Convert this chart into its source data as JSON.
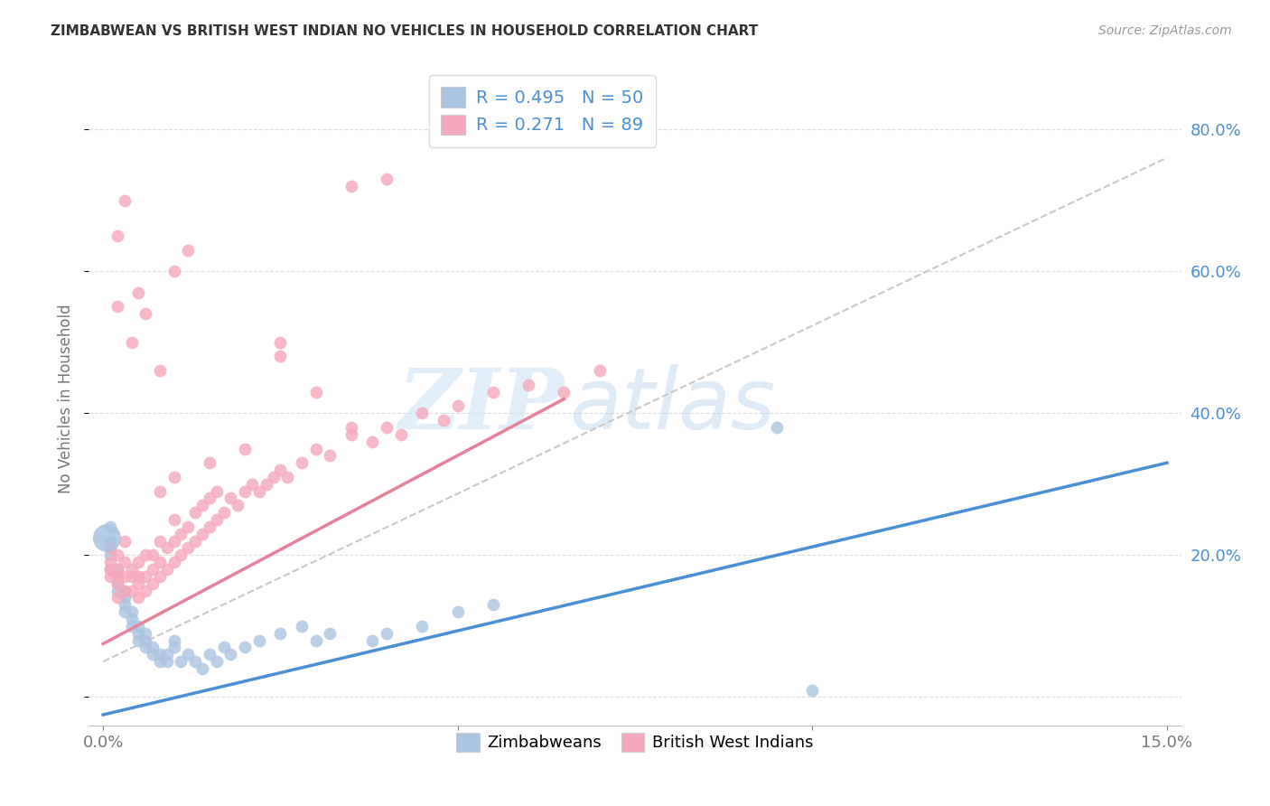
{
  "title": "ZIMBABWEAN VS BRITISH WEST INDIAN NO VEHICLES IN HOUSEHOLD CORRELATION CHART",
  "source": "Source: ZipAtlas.com",
  "ylabel": "No Vehicles in Household",
  "xlim": [
    -0.002,
    0.152
  ],
  "ylim": [
    -0.04,
    0.88
  ],
  "color_blue": "#aac4e2",
  "color_pink": "#f5a8bb",
  "color_blue_text": "#4a8fd4",
  "trendline_blue": "#4a8fd4",
  "trendline_pink": "#e8809a",
  "trendline_dashed": "#c8c8c8",
  "watermark_zip": "ZIP",
  "watermark_atlas": "atlas",
  "background_color": "#ffffff",
  "grid_color": "#dddddd",
  "legend_r1": "R = 0.495",
  "legend_n1": "N = 50",
  "legend_r2": "R = 0.271",
  "legend_n2": "N = 89",
  "zim_x": [
    0.001,
    0.001,
    0.001,
    0.001,
    0.002,
    0.002,
    0.002,
    0.002,
    0.003,
    0.003,
    0.003,
    0.003,
    0.004,
    0.004,
    0.004,
    0.005,
    0.005,
    0.005,
    0.006,
    0.006,
    0.006,
    0.007,
    0.007,
    0.008,
    0.008,
    0.009,
    0.009,
    0.01,
    0.01,
    0.011,
    0.012,
    0.013,
    0.014,
    0.015,
    0.016,
    0.017,
    0.018,
    0.02,
    0.022,
    0.025,
    0.028,
    0.03,
    0.032,
    0.038,
    0.04,
    0.045,
    0.05,
    0.055,
    0.095,
    0.1
  ],
  "zim_y": [
    0.18,
    0.2,
    0.22,
    0.24,
    0.15,
    0.16,
    0.17,
    0.18,
    0.12,
    0.13,
    0.14,
    0.15,
    0.1,
    0.11,
    0.12,
    0.08,
    0.09,
    0.1,
    0.07,
    0.08,
    0.09,
    0.06,
    0.07,
    0.05,
    0.06,
    0.05,
    0.06,
    0.07,
    0.08,
    0.05,
    0.06,
    0.05,
    0.04,
    0.06,
    0.05,
    0.07,
    0.06,
    0.07,
    0.08,
    0.09,
    0.1,
    0.08,
    0.09,
    0.08,
    0.09,
    0.1,
    0.12,
    0.13,
    0.38,
    0.01
  ],
  "bwi_x": [
    0.001,
    0.001,
    0.001,
    0.001,
    0.002,
    0.002,
    0.002,
    0.002,
    0.002,
    0.003,
    0.003,
    0.003,
    0.003,
    0.004,
    0.004,
    0.004,
    0.005,
    0.005,
    0.005,
    0.005,
    0.006,
    0.006,
    0.006,
    0.007,
    0.007,
    0.007,
    0.008,
    0.008,
    0.008,
    0.009,
    0.009,
    0.01,
    0.01,
    0.01,
    0.011,
    0.011,
    0.012,
    0.012,
    0.013,
    0.013,
    0.014,
    0.014,
    0.015,
    0.015,
    0.016,
    0.016,
    0.017,
    0.018,
    0.019,
    0.02,
    0.021,
    0.022,
    0.023,
    0.024,
    0.025,
    0.026,
    0.028,
    0.03,
    0.032,
    0.035,
    0.038,
    0.04,
    0.042,
    0.045,
    0.048,
    0.05,
    0.055,
    0.06,
    0.065,
    0.07,
    0.025,
    0.025,
    0.03,
    0.035,
    0.02,
    0.015,
    0.01,
    0.008,
    0.005,
    0.003,
    0.002,
    0.002,
    0.035,
    0.04,
    0.012,
    0.01,
    0.006,
    0.004,
    0.008
  ],
  "bwi_y": [
    0.17,
    0.18,
    0.19,
    0.21,
    0.14,
    0.16,
    0.17,
    0.18,
    0.2,
    0.15,
    0.17,
    0.19,
    0.22,
    0.15,
    0.17,
    0.18,
    0.14,
    0.16,
    0.17,
    0.19,
    0.15,
    0.17,
    0.2,
    0.16,
    0.18,
    0.2,
    0.17,
    0.19,
    0.22,
    0.18,
    0.21,
    0.19,
    0.22,
    0.25,
    0.2,
    0.23,
    0.21,
    0.24,
    0.22,
    0.26,
    0.23,
    0.27,
    0.24,
    0.28,
    0.25,
    0.29,
    0.26,
    0.28,
    0.27,
    0.29,
    0.3,
    0.29,
    0.3,
    0.31,
    0.32,
    0.31,
    0.33,
    0.35,
    0.34,
    0.37,
    0.36,
    0.38,
    0.37,
    0.4,
    0.39,
    0.41,
    0.43,
    0.44,
    0.43,
    0.46,
    0.48,
    0.5,
    0.43,
    0.38,
    0.35,
    0.33,
    0.31,
    0.29,
    0.57,
    0.7,
    0.65,
    0.55,
    0.72,
    0.73,
    0.63,
    0.6,
    0.54,
    0.5,
    0.46
  ],
  "blue_trendline": [
    [
      0.0,
      0.15
    ],
    [
      -0.025,
      0.33
    ]
  ],
  "pink_trendline": [
    [
      0.0,
      0.065
    ],
    [
      0.075,
      0.42
    ]
  ],
  "dash_line": [
    [
      0.0,
      0.15
    ],
    [
      0.05,
      0.76
    ]
  ]
}
